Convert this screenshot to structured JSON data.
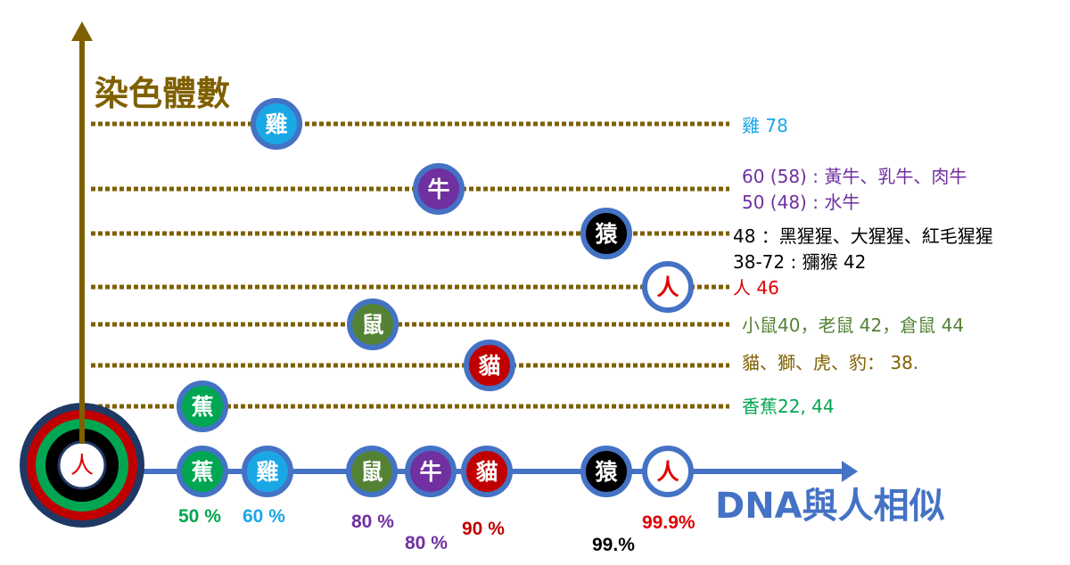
{
  "axes": {
    "y_title": "染色體數",
    "x_title": "DNA與人相似"
  },
  "origin": {
    "label": "人"
  },
  "colors": {
    "axis_y": "#7f6000",
    "axis_x": "#4472c4",
    "ring": "#4472c4"
  },
  "rows": [
    {
      "key": "chicken",
      "glyph": "雞",
      "fill": "#1aa7e6",
      "text_color": "#ffffff",
      "lines": [
        "雞 78"
      ],
      "label_color": "#1aa7e6"
    },
    {
      "key": "cattle",
      "glyph": "牛",
      "fill": "#7030a0",
      "text_color": "#ffffff",
      "lines": [
        "60 (58) : 黃牛、乳牛、肉牛",
        "50 (48) : 水牛"
      ],
      "label_color": "#7030a0"
    },
    {
      "key": "ape",
      "glyph": "猿",
      "fill": "#000000",
      "text_color": "#ffffff",
      "lines": [
        "48 ：黑猩猩、大猩猩、紅毛猩猩",
        "38-72 : 獼猴 42"
      ],
      "label_color": "#000000"
    },
    {
      "key": "human",
      "glyph": "人",
      "fill": "#ffffff",
      "text_color": "#e00000",
      "lines": [
        "人 46"
      ],
      "label_color": "#e00000"
    },
    {
      "key": "mouse",
      "glyph": "鼠",
      "fill": "#548235",
      "text_color": "#ffffff",
      "lines": [
        "小鼠40，老鼠 42，倉鼠 44"
      ],
      "label_color": "#548235"
    },
    {
      "key": "cat",
      "glyph": "貓",
      "fill": "#c00000",
      "text_color": "#ffffff",
      "lines": [
        "貓、獅、虎、豹： 38."
      ],
      "label_color": "#7f6000"
    },
    {
      "key": "banana",
      "glyph": "蕉",
      "fill": "#00a651",
      "text_color": "#ffffff",
      "lines": [
        "香蕉22, 44"
      ],
      "label_color": "#00a651"
    }
  ],
  "similarity": [
    {
      "key": "banana",
      "glyph": "蕉",
      "fill": "#00a651",
      "text_color": "#ffffff",
      "percent": "50 %",
      "percent_color": "#00a651"
    },
    {
      "key": "chicken",
      "glyph": "雞",
      "fill": "#1aa7e6",
      "text_color": "#ffffff",
      "percent": "60 %",
      "percent_color": "#1aa7e6"
    },
    {
      "key": "mouse",
      "glyph": "鼠",
      "fill": "#548235",
      "text_color": "#ffffff",
      "percent": "80 %",
      "percent_color": "#7030a0"
    },
    {
      "key": "cattle",
      "glyph": "牛",
      "fill": "#7030a0",
      "text_color": "#ffffff",
      "percent": "80 %",
      "percent_color": "#7030a0"
    },
    {
      "key": "cat",
      "glyph": "貓",
      "fill": "#c00000",
      "text_color": "#ffffff",
      "percent": "90 %",
      "percent_color": "#c00000"
    },
    {
      "key": "ape",
      "glyph": "猿",
      "fill": "#000000",
      "text_color": "#ffffff",
      "percent": "99.%",
      "percent_color": "#000000"
    },
    {
      "key": "human",
      "glyph": "人",
      "fill": "#ffffff",
      "text_color": "#e00000",
      "percent": "99.9%",
      "percent_color": "#e00000"
    }
  ]
}
